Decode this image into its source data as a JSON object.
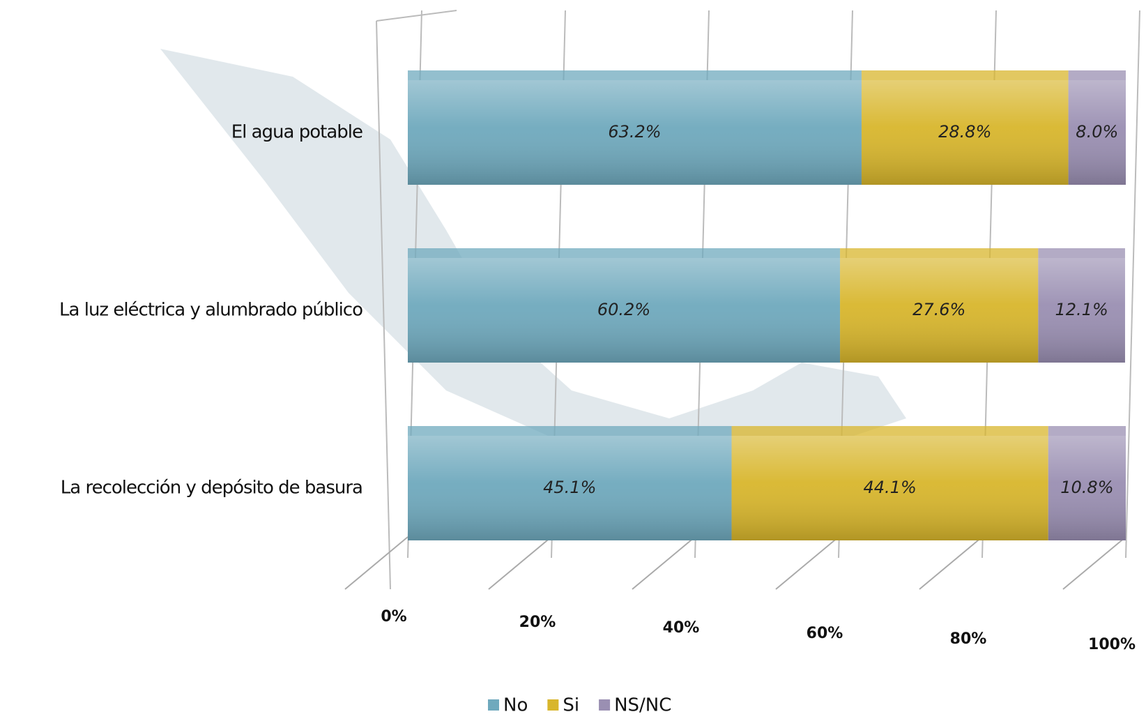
{
  "chart_data": {
    "type": "stacked_barh",
    "categories": [
      "El agua potable",
      "La luz eléctrica y alumbrado público",
      "La recolección y depósito de basura"
    ],
    "series": [
      {
        "name": "No",
        "color": "#6fa9bd",
        "values": [
          63.2,
          60.2,
          45.1
        ],
        "value_labels": [
          "63.2%",
          "60.2%",
          "45.1%"
        ]
      },
      {
        "name": "Si",
        "color": "#d8b62c",
        "values": [
          28.8,
          27.6,
          44.1
        ],
        "value_labels": [
          "28.8%",
          "27.6%",
          "44.1%"
        ]
      },
      {
        "name": "NS/NC",
        "color": "#9a8fb2",
        "values": [
          8.0,
          12.1,
          10.8
        ],
        "value_labels": [
          "8.0%",
          "12.1%",
          "10.8%"
        ]
      }
    ],
    "xlim": [
      0,
      100
    ],
    "xticks": [
      {
        "value": 0,
        "label": "0%"
      },
      {
        "value": 20,
        "label": "20%"
      },
      {
        "value": 40,
        "label": "40%"
      },
      {
        "value": 60,
        "label": "60%"
      },
      {
        "value": 80,
        "label": "80%"
      },
      {
        "value": 100,
        "label": "100%"
      }
    ],
    "grid": true
  }
}
